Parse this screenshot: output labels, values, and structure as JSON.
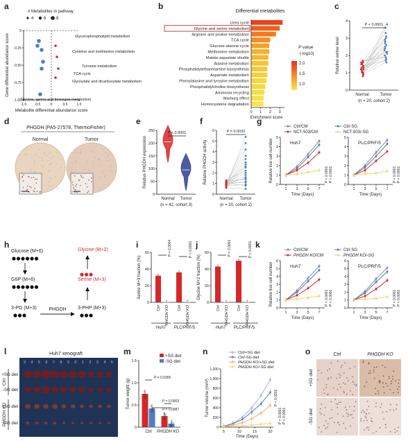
{
  "colors": {
    "red": "#d62728",
    "blue": "#4a7fc1",
    "grey": "#888888",
    "light": "#f3d36b",
    "navy": "#2e3f8f"
  },
  "panel_letters": [
    "a",
    "b",
    "c",
    "d",
    "e",
    "f",
    "g",
    "h",
    "i",
    "j",
    "k",
    "l",
    "m",
    "n",
    "o"
  ],
  "a": {
    "legend_title": "# Metabolites in pathway",
    "legend_sizes": [
      "4",
      "6",
      "8"
    ],
    "xlabel": "Metabolite differential abundance score",
    "ylabel": "Gene differential abundance score",
    "xticks": [
      "-1.0",
      "-0.5",
      "0",
      "0.5",
      "1.0"
    ],
    "yticks": [
      "0",
      "-0.25",
      "-0.50",
      "-0.75",
      "-1.00"
    ],
    "labels": [
      "Glycerophospholipid metabolism",
      "Cysteine and methionine metabolism",
      "Tyrosine metabolism",
      "TCA cycle",
      "Glyoxylate and dicarboxylate metabolism",
      "Glycine, serine and threonine metabolism"
    ]
  },
  "b": {
    "title": "Differential metabolites",
    "xlabel": "Enrichment score",
    "xticks": [
      "0",
      "1",
      "2",
      "3"
    ],
    "legend_title": "P value",
    "legend_unit": "(-log10)",
    "legend_ticks": [
      "2.0",
      "1.5",
      "1.0"
    ],
    "highlight": "Glycine and serine metabolism"
  },
  "c": {
    "ylabel": "Relative serine level",
    "p": "P < 0.0001",
    "cats": [
      "Normal",
      "Tumor"
    ],
    "n": "(n = 20, cohort 2)",
    "yticks": [
      "0",
      "1",
      "2",
      "3",
      "4"
    ]
  },
  "d": {
    "title": "PHGDH (PA5-27578, ThermoFisher)",
    "labels": [
      "Normal",
      "Tumor"
    ]
  },
  "e": {
    "ylabel": "Relative PHGDH expression",
    "p": "P < 0.0001",
    "cats": [
      "Normal",
      "Tumor"
    ],
    "n": "(n = 42, cohort 3)",
    "yticks": [
      "0",
      "50",
      "100",
      "150",
      "200",
      "250"
    ]
  },
  "f": {
    "ylabel": "Relative PHGDH activity",
    "p": "P = 0.0032",
    "cats": [
      "Normal",
      "Tumor"
    ],
    "n": "(n = 20, cohort 2)",
    "yticks": [
      "0",
      "1",
      "2",
      "3",
      "4",
      "5",
      "6"
    ]
  },
  "g": {
    "legend": [
      "Ctrl/CM",
      "Ctrl-SG",
      "NCT-503/CM",
      "NCT-503/-SG"
    ],
    "titles": [
      "Huh7",
      "PLC/PRF/5"
    ],
    "ylabel": "Relative live cell number",
    "xlabel": "Time (Days)",
    "xticks": [
      "1",
      "3",
      "5",
      "7"
    ],
    "yticks": [
      "0",
      "1",
      "2",
      "3",
      "4",
      "5"
    ],
    "pvals": [
      "P < 0.0001",
      "P < 0.0001",
      "P < 0.0001",
      "P < 0.0001"
    ]
  },
  "h": {
    "nodes": [
      "Glucose (M+6)",
      "G6P (M+6)",
      "3-PG (M+3)",
      "3-PHP (M+3)",
      "Serine (M+3)",
      "Glycine (M+2)"
    ],
    "enzyme": "PHGDH"
  },
  "i": {
    "ylabel": "Serine M+3 fraction (%)",
    "groups": [
      "Huh7",
      "PLC/PRF/5"
    ],
    "bars": [
      "Ctrl",
      "PHGDH KO",
      "Ctrl",
      "PHGDH KO"
    ],
    "p": [
      "P = 0.0004",
      "P < 0.0001"
    ],
    "yticks": [
      "0",
      "20",
      "40",
      "60"
    ]
  },
  "j": {
    "ylabel": "Glycine M+2 fraction (%)",
    "groups": [
      "Huh7",
      "PLC/PRF/5"
    ],
    "bars": [
      "Ctrl",
      "PHGDH KO",
      "Ctrl",
      "PHGDH KO"
    ],
    "p": [
      "P < 0.0001",
      "P < 0.0001"
    ],
    "yticks": [
      "0",
      "20",
      "40",
      "60"
    ]
  },
  "k": {
    "legend": [
      "Ctrl/CM",
      "Ctrl-SG",
      "PHGDH KO/CM",
      "PHGDH KO/-SG"
    ],
    "titles": [
      "Huh7",
      "PLC/PRF/5"
    ],
    "ylabel": "Relative live cell number",
    "xlabel": "Time (Days)",
    "xticks": [
      "1",
      "3",
      "5",
      "7"
    ],
    "yticks": [
      "0",
      "1",
      "2",
      "3",
      "4",
      "5",
      "6"
    ],
    "pvals": [
      "P < 0.0001",
      "P < 0.0001",
      "P < 0.0001",
      "P < 0.0001"
    ]
  },
  "l": {
    "title": "Huh7 xenograft",
    "rows": [
      "+SG diet",
      "-SG diet",
      "+SG diet",
      "-SG diet"
    ],
    "groups": [
      "Ctrl",
      "PHGDH KO"
    ]
  },
  "m": {
    "ylabel": "Tumor weight (g)",
    "legend": [
      "+SG diet",
      "-SG diet"
    ],
    "cats": [
      "Ctrl",
      "PHGDH KO"
    ],
    "p": [
      "P = 0.0365",
      "P = 0.0002",
      "P = 0.0087"
    ],
    "yticks": [
      "0",
      "0.5",
      "1.0",
      "1.5"
    ]
  },
  "n": {
    "ylabel": "Tumor volume (mm³)",
    "xlabel": "Time (Days)",
    "legend": [
      "Ctrl/+SG diet",
      "Ctrl/-SG diet",
      "PHGDH KO/+SG diet",
      "PHGDH KO/-SG diet"
    ],
    "xticks": [
      "5",
      "10",
      "15",
      "20"
    ],
    "yticks": [
      "0",
      "200",
      "400",
      "600",
      "800",
      "1,000",
      "1,200"
    ],
    "pvals": [
      "P = 0.0202",
      "P < 0.0001",
      "P < 0.0001"
    ]
  },
  "o": {
    "cols": [
      "Ctrl",
      "PHGDH KO"
    ],
    "rows": [
      "+SG diet",
      "-SG diet"
    ]
  },
  "chart_data": [
    {
      "type": "scatter",
      "panel": "a",
      "xlabel": "Metabolite differential abundance score",
      "ylabel": "Gene differential abundance score",
      "xlim": [
        -1.0,
        1.0
      ],
      "ylim": [
        -1.0,
        0.0
      ],
      "series": [
        {
          "name": "",
          "x": [
            -0.45,
            -0.5,
            -0.35,
            -0.3,
            -0.35,
            0.15,
            0.2,
            0.25,
            0.15,
            -0.4
          ],
          "y": [
            -0.15,
            -0.22,
            -0.28,
            -0.45,
            -0.55,
            -0.22,
            -0.38,
            -0.55,
            -0.68,
            -0.92
          ]
        }
      ]
    },
    {
      "type": "bar",
      "panel": "b",
      "orientation": "horizontal",
      "title": "Differential metabolites",
      "xlabel": "Enrichment score",
      "categories": [
        "Urea cycle",
        "Glycine and serine metabolism",
        "Arginine and proline metabolism",
        "TCA cycle",
        "Glucose-alanine cycle",
        "Methionine metabolism",
        "Malate-aspartate shuttle",
        "Alanine metabolism",
        "Phosphatidylethanolamine biosynthesis",
        "Aspartate metabolism",
        "Phenylalanine and tyrosine metabolism",
        "Phosphatidylcholine biosynthesis",
        "Ammonia recycling",
        "Warburg effect",
        "Homocysteine degradation"
      ],
      "values": [
        3.3,
        3.0,
        2.6,
        2.0,
        1.9,
        1.9,
        1.8,
        1.8,
        1.7,
        1.7,
        1.6,
        1.5,
        1.4,
        1.3,
        1.3
      ]
    },
    {
      "type": "scatter",
      "panel": "c",
      "categories": [
        "Normal",
        "Tumor"
      ],
      "ylim": [
        0,
        4
      ],
      "series": [
        {
          "name": "Normal",
          "values": [
            0.9,
            1.0,
            1.1,
            1.2,
            1.3,
            1.4,
            1.5,
            1.6,
            0.8,
            1.0,
            1.1,
            1.2,
            1.3,
            1.5,
            1.7,
            0.9,
            1.0,
            1.2,
            1.4,
            1.6
          ]
        },
        {
          "name": "Tumor",
          "values": [
            1.6,
            1.8,
            2.0,
            2.2,
            2.5,
            2.8,
            3.0,
            3.3,
            3.6,
            3.8,
            2.1,
            2.3,
            2.6,
            2.9,
            1.9,
            2.4,
            2.7,
            3.1,
            1.7,
            2.2
          ]
        }
      ]
    },
    {
      "type": "violin",
      "panel": "e",
      "categories": [
        "Normal",
        "Tumor"
      ],
      "ylim": [
        0,
        250
      ],
      "medians": [
        205,
        95
      ]
    },
    {
      "type": "scatter",
      "panel": "f",
      "categories": [
        "Normal",
        "Tumor"
      ],
      "ylim": [
        0,
        6
      ],
      "series": [
        {
          "name": "Normal",
          "values": [
            0.6,
            0.8,
            0.9,
            1.0,
            1.1,
            0.7,
            0.9,
            1.2,
            1.0,
            0.8,
            1.1,
            0.9,
            1.3,
            0.7,
            1.0,
            1.2,
            0.8,
            1.1,
            0.9,
            1.0
          ]
        },
        {
          "name": "Tumor",
          "values": [
            0.5,
            0.9,
            1.2,
            1.5,
            2.0,
            2.5,
            3.0,
            3.6,
            4.2,
            5.4,
            1.1,
            1.8,
            2.2,
            2.8,
            0.8,
            1.4,
            1.6,
            2.6,
            3.3,
            4.8
          ]
        }
      ]
    },
    {
      "type": "line",
      "panel": "g",
      "subpanel": "Huh7",
      "x": [
        1,
        3,
        5,
        7
      ],
      "ylim": [
        0,
        5
      ],
      "series": [
        {
          "name": "Ctrl/CM",
          "values": [
            1,
            1.9,
            3.2,
            4.6
          ]
        },
        {
          "name": "Ctrl-SG",
          "values": [
            1,
            1.7,
            2.9,
            4.2
          ]
        },
        {
          "name": "NCT-503/CM",
          "values": [
            1,
            1.5,
            2.3,
            3.4
          ]
        },
        {
          "name": "NCT-503/-SG",
          "values": [
            1,
            1.1,
            1.3,
            1.5
          ]
        }
      ]
    },
    {
      "type": "line",
      "panel": "g",
      "subpanel": "PLC/PRF/5",
      "x": [
        1,
        3,
        5,
        7
      ],
      "ylim": [
        0,
        5
      ],
      "series": [
        {
          "name": "Ctrl/CM",
          "values": [
            1,
            2.0,
            3.4,
            4.7
          ]
        },
        {
          "name": "Ctrl-SG",
          "values": [
            1,
            1.8,
            3.0,
            4.3
          ]
        },
        {
          "name": "NCT-503/CM",
          "values": [
            1,
            1.5,
            2.5,
            3.5
          ]
        },
        {
          "name": "NCT-503/-SG",
          "values": [
            1,
            1.1,
            1.2,
            1.4
          ]
        }
      ]
    },
    {
      "type": "bar",
      "panel": "i",
      "categories": [
        "Ctrl",
        "PHGDH KO",
        "Ctrl",
        "PHGDH KO"
      ],
      "groups": [
        "Huh7",
        "Huh7",
        "PLC/PRF/5",
        "PLC/PRF/5"
      ],
      "values": [
        32,
        0.5,
        36,
        0.5
      ],
      "ylim": [
        0,
        60
      ]
    },
    {
      "type": "bar",
      "panel": "j",
      "categories": [
        "Ctrl",
        "PHGDH KO",
        "Ctrl",
        "PHGDH KO"
      ],
      "groups": [
        "Huh7",
        "Huh7",
        "PLC/PRF/5",
        "PLC/PRF/5"
      ],
      "values": [
        43,
        0.5,
        50,
        0.5
      ],
      "ylim": [
        0,
        60
      ]
    },
    {
      "type": "line",
      "panel": "k",
      "subpanel": "Huh7",
      "x": [
        1,
        3,
        5,
        7
      ],
      "ylim": [
        0,
        6
      ],
      "series": [
        {
          "name": "Ctrl/CM",
          "values": [
            1,
            2.2,
            3.8,
            5.3
          ]
        },
        {
          "name": "Ctrl-SG",
          "values": [
            1,
            2.0,
            3.4,
            4.8
          ]
        },
        {
          "name": "PHGDH KO/CM",
          "values": [
            1,
            1.6,
            2.5,
            3.6
          ]
        },
        {
          "name": "PHGDH KO/-SG",
          "values": [
            1,
            1.1,
            1.3,
            1.5
          ]
        }
      ]
    },
    {
      "type": "line",
      "panel": "k",
      "subpanel": "PLC/PRF/5",
      "x": [
        1,
        3,
        5,
        7
      ],
      "ylim": [
        0,
        6
      ],
      "series": [
        {
          "name": "Ctrl/CM",
          "values": [
            1,
            2.1,
            3.7,
            5.1
          ]
        },
        {
          "name": "Ctrl-SG",
          "values": [
            1,
            1.9,
            3.3,
            4.6
          ]
        },
        {
          "name": "PHGDH KO/CM",
          "values": [
            1,
            1.5,
            2.4,
            3.5
          ]
        },
        {
          "name": "PHGDH KO/-SG",
          "values": [
            1,
            1.1,
            1.2,
            1.4
          ]
        }
      ]
    },
    {
      "type": "bar",
      "panel": "m",
      "categories": [
        "Ctrl",
        "PHGDH KO"
      ],
      "series": [
        {
          "name": "+SG diet",
          "values": [
            0.75,
            0.25
          ]
        },
        {
          "name": "-SG diet",
          "values": [
            0.42,
            0.08
          ]
        }
      ],
      "ylim": [
        0,
        1.5
      ]
    },
    {
      "type": "line",
      "panel": "n",
      "x": [
        5,
        8,
        11,
        14,
        17,
        20
      ],
      "ylim": [
        0,
        1200
      ],
      "series": [
        {
          "name": "Ctrl/+SG diet",
          "values": [
            20,
            80,
            200,
            400,
            650,
            980
          ]
        },
        {
          "name": "Ctrl/-SG diet",
          "values": [
            20,
            70,
            160,
            310,
            480,
            720
          ]
        },
        {
          "name": "PHGDH KO/+SG diet",
          "values": [
            15,
            40,
            90,
            170,
            290,
            450
          ]
        },
        {
          "name": "PHGDH KO/-SG diet",
          "values": [
            10,
            20,
            30,
            45,
            60,
            80
          ]
        }
      ]
    }
  ]
}
